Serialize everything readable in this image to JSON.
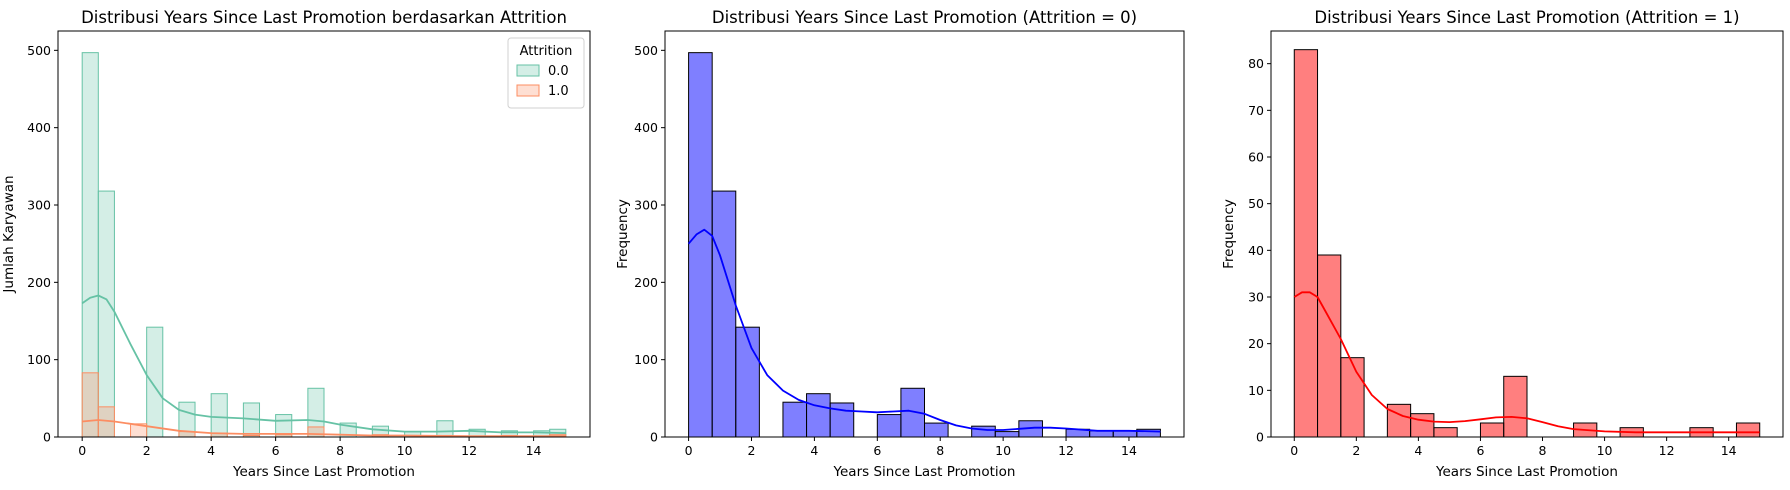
{
  "chart_data": [
    {
      "type": "bar",
      "subtype": "histogram-step-overlay",
      "title": "Distribusi Years Since Last Promotion berdasarkan Attrition",
      "xlabel": "Years Since Last Promotion",
      "ylabel": "Jumlah Karyawan",
      "xlim": [
        -0.75,
        15.75
      ],
      "ylim": [
        0,
        525
      ],
      "xticks": [
        0,
        2,
        4,
        6,
        8,
        10,
        12,
        14
      ],
      "yticks": [
        0,
        100,
        200,
        300,
        400,
        500
      ],
      "bin_width": 0.5,
      "legend": {
        "title": "Attrition",
        "position": "top-right"
      },
      "series": [
        {
          "name": "0.0",
          "color": "#66c2a5",
          "bins": [
            [
              0,
              497
            ],
            [
              0.5,
              318
            ],
            [
              2,
              142
            ],
            [
              3,
              45
            ],
            [
              4,
              56
            ],
            [
              5,
              44
            ],
            [
              6,
              29
            ],
            [
              7,
              63
            ],
            [
              8,
              18
            ],
            [
              9,
              14
            ],
            [
              10,
              7
            ],
            [
              11,
              21
            ],
            [
              12,
              10
            ],
            [
              13,
              8
            ],
            [
              14,
              8
            ],
            [
              14.5,
              10
            ]
          ],
          "kde": [
            [
              0,
              173
            ],
            [
              0.25,
              180
            ],
            [
              0.5,
              183
            ],
            [
              0.75,
              178
            ],
            [
              1,
              162
            ],
            [
              1.5,
              120
            ],
            [
              2,
              80
            ],
            [
              2.5,
              50
            ],
            [
              3,
              35
            ],
            [
              3.5,
              29
            ],
            [
              4,
              26
            ],
            [
              5,
              24
            ],
            [
              6,
              21
            ],
            [
              7,
              22
            ],
            [
              7.5,
              20
            ],
            [
              8,
              16
            ],
            [
              9,
              10
            ],
            [
              10,
              7
            ],
            [
              11,
              7
            ],
            [
              12,
              8
            ],
            [
              13,
              6
            ],
            [
              14,
              6
            ],
            [
              15,
              5
            ]
          ]
        },
        {
          "name": "1.0",
          "color": "#fc8d62",
          "bins": [
            [
              0,
              83
            ],
            [
              0.5,
              39
            ],
            [
              1.5,
              17
            ],
            [
              3,
              7
            ],
            [
              4,
              5
            ],
            [
              5,
              2
            ],
            [
              6,
              3
            ],
            [
              7,
              13
            ],
            [
              9,
              3
            ],
            [
              11,
              2
            ],
            [
              13,
              2
            ],
            [
              14.5,
              3
            ]
          ],
          "kde": [
            [
              0,
              20
            ],
            [
              0.5,
              22
            ],
            [
              1,
              20
            ],
            [
              2,
              14
            ],
            [
              3,
              8
            ],
            [
              4,
              5
            ],
            [
              5,
              4
            ],
            [
              6,
              4
            ],
            [
              7,
              4
            ],
            [
              8,
              3
            ],
            [
              9,
              2
            ],
            [
              10,
              2
            ],
            [
              12,
              1
            ],
            [
              14,
              1
            ],
            [
              15,
              1
            ]
          ]
        }
      ]
    },
    {
      "type": "bar",
      "subtype": "histogram",
      "title": "Distribusi Years Since Last Promotion (Attrition = 0)",
      "xlabel": "Years Since Last Promotion",
      "ylabel": "Frequency",
      "xlim": [
        -0.75,
        15.75
      ],
      "ylim": [
        0,
        525
      ],
      "xticks": [
        0,
        2,
        4,
        6,
        8,
        10,
        12,
        14
      ],
      "yticks": [
        0,
        100,
        200,
        300,
        400,
        500
      ],
      "bin_width": 0.75,
      "color": "#0000ff",
      "bins": [
        [
          0,
          497
        ],
        [
          0.75,
          318
        ],
        [
          1.5,
          142
        ],
        [
          3,
          45
        ],
        [
          3.75,
          56
        ],
        [
          4.5,
          44
        ],
        [
          6,
          29
        ],
        [
          6.75,
          63
        ],
        [
          7.5,
          18
        ],
        [
          9,
          14
        ],
        [
          9.75,
          7
        ],
        [
          10.5,
          21
        ],
        [
          12,
          10
        ],
        [
          12.75,
          8
        ],
        [
          13.5,
          8
        ],
        [
          14.25,
          10
        ]
      ],
      "kde": [
        [
          0,
          250
        ],
        [
          0.25,
          262
        ],
        [
          0.5,
          268
        ],
        [
          0.75,
          260
        ],
        [
          1,
          235
        ],
        [
          1.5,
          170
        ],
        [
          2,
          115
        ],
        [
          2.5,
          80
        ],
        [
          3,
          60
        ],
        [
          3.5,
          48
        ],
        [
          4,
          41
        ],
        [
          4.5,
          37
        ],
        [
          5,
          34
        ],
        [
          5.5,
          33
        ],
        [
          6,
          32
        ],
        [
          6.5,
          33
        ],
        [
          7,
          34
        ],
        [
          7.5,
          30
        ],
        [
          8,
          22
        ],
        [
          8.5,
          15
        ],
        [
          9,
          11
        ],
        [
          9.5,
          9
        ],
        [
          10,
          9
        ],
        [
          11,
          12
        ],
        [
          11.5,
          12
        ],
        [
          12,
          11
        ],
        [
          13,
          8
        ],
        [
          14,
          8
        ],
        [
          15,
          7
        ]
      ]
    },
    {
      "type": "bar",
      "subtype": "histogram",
      "title": "Distribusi Years Since Last Promotion (Attrition = 1)",
      "xlabel": "Years Since Last Promotion",
      "ylabel": "Frequency",
      "xlim": [
        -0.75,
        15.75
      ],
      "ylim": [
        0,
        87
      ],
      "xticks": [
        0,
        2,
        4,
        6,
        8,
        10,
        12,
        14
      ],
      "yticks": [
        0,
        10,
        20,
        30,
        40,
        50,
        60,
        70,
        80
      ],
      "bin_width": 0.75,
      "color": "#ff0000",
      "bins": [
        [
          0,
          83
        ],
        [
          0.75,
          39
        ],
        [
          1.5,
          17
        ],
        [
          3,
          7
        ],
        [
          3.75,
          5
        ],
        [
          4.5,
          2
        ],
        [
          6,
          3
        ],
        [
          6.75,
          13
        ],
        [
          9,
          3
        ],
        [
          10.5,
          2
        ],
        [
          12.75,
          2
        ],
        [
          14.25,
          3
        ]
      ],
      "kde": [
        [
          0,
          30
        ],
        [
          0.25,
          31
        ],
        [
          0.5,
          31
        ],
        [
          0.75,
          30
        ],
        [
          1,
          27
        ],
        [
          1.5,
          21
        ],
        [
          2,
          14
        ],
        [
          2.5,
          9
        ],
        [
          3,
          6
        ],
        [
          3.5,
          4.5
        ],
        [
          4,
          3.7
        ],
        [
          4.5,
          3.3
        ],
        [
          5,
          3.2
        ],
        [
          5.5,
          3.4
        ],
        [
          6,
          3.8
        ],
        [
          6.5,
          4.2
        ],
        [
          7,
          4.3
        ],
        [
          7.5,
          4
        ],
        [
          8,
          3.2
        ],
        [
          8.5,
          2.3
        ],
        [
          9,
          1.7
        ],
        [
          10,
          1.2
        ],
        [
          11,
          1
        ],
        [
          12,
          1
        ],
        [
          13,
          1
        ],
        [
          14,
          1
        ],
        [
          15,
          1
        ]
      ]
    }
  ]
}
